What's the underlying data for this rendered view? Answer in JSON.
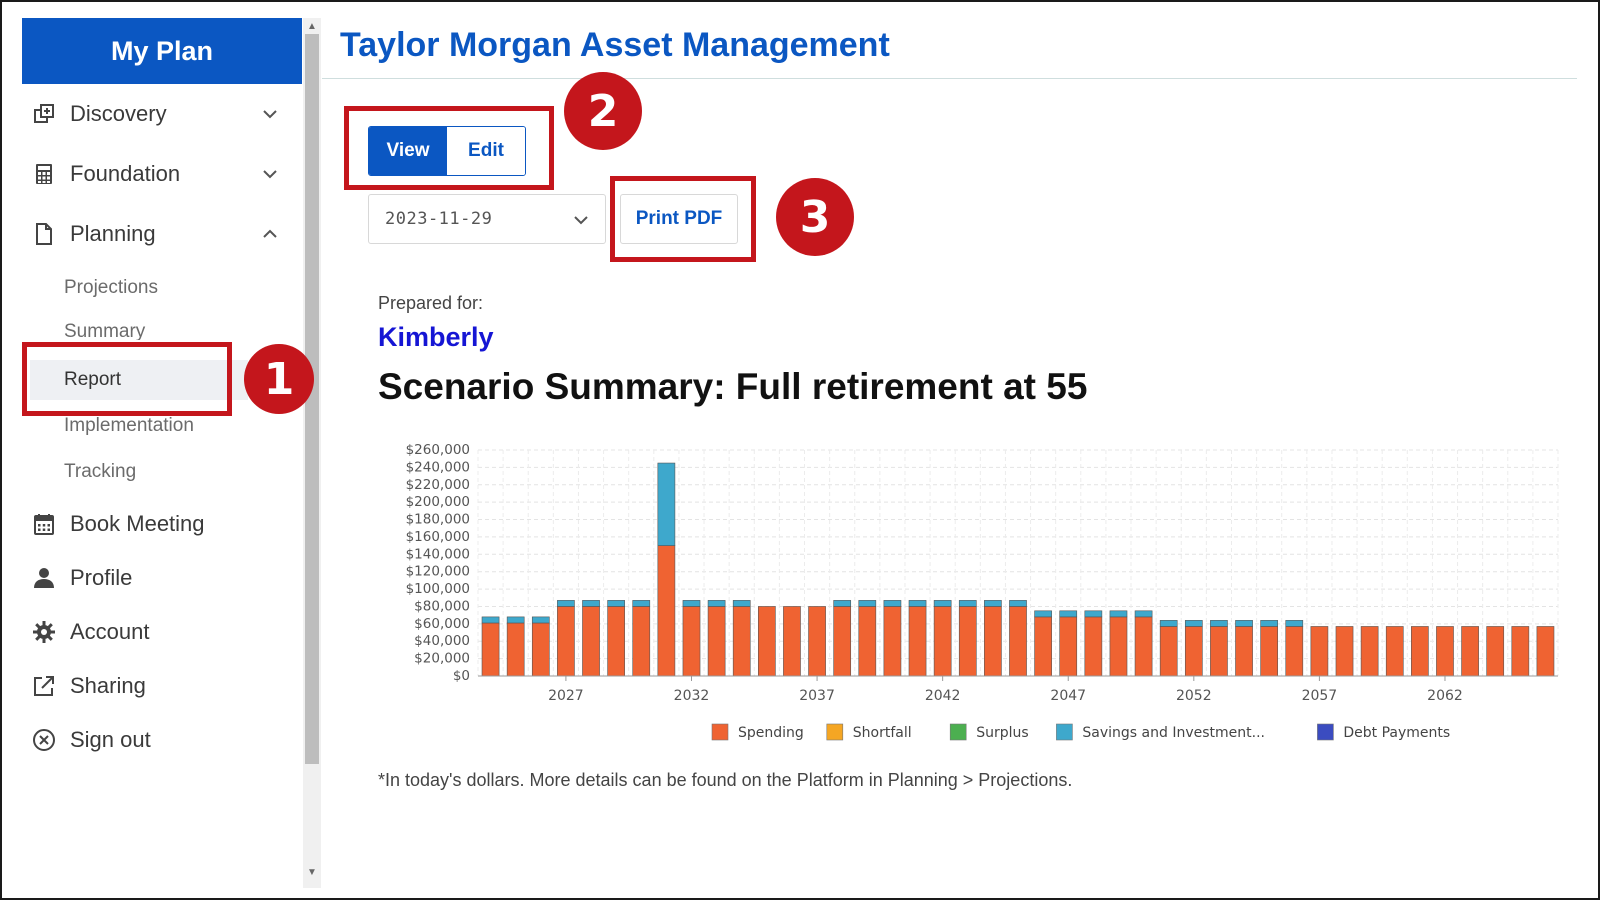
{
  "sidebar": {
    "brand": "My Plan",
    "items": [
      {
        "label": "Discovery",
        "icon": "discovery-icon",
        "chevron": "down"
      },
      {
        "label": "Foundation",
        "icon": "calculator-icon",
        "chevron": "down"
      },
      {
        "label": "Planning",
        "icon": "document-icon",
        "chevron": "up"
      }
    ],
    "sub_items": [
      {
        "label": "Projections"
      },
      {
        "label": "Summary"
      },
      {
        "label": "Report",
        "active": true
      },
      {
        "label": "Implementation"
      },
      {
        "label": "Tracking"
      }
    ],
    "bottom_items": [
      {
        "label": "Book Meeting",
        "icon": "calendar-icon"
      },
      {
        "label": "Profile",
        "icon": "user-icon"
      },
      {
        "label": "Account",
        "icon": "gear-icon"
      },
      {
        "label": "Sharing",
        "icon": "share-icon"
      },
      {
        "label": "Sign out",
        "icon": "sign-out-icon"
      }
    ]
  },
  "header": {
    "title": "Taylor Morgan Asset Management"
  },
  "controls": {
    "view_label": "View",
    "edit_label": "Edit",
    "selected_mode": "View",
    "date_value": "2023-11-29",
    "print_label": "Print PDF"
  },
  "report": {
    "prepared_label": "Prepared for:",
    "client_name": "Kimberly",
    "scenario_title": "Scenario Summary: Full retirement at 55",
    "footnote": "*In today's dollars. More details can be found on the Platform in Planning > Projections."
  },
  "annotations": [
    {
      "number": "1"
    },
    {
      "number": "2"
    },
    {
      "number": "3"
    }
  ],
  "colors": {
    "brand": "#0b57c2",
    "annotation": "#c4161c",
    "client_name": "#1515d4"
  },
  "chart_data": {
    "type": "bar",
    "stacked": true,
    "x": [
      2024,
      2025,
      2026,
      2027,
      2028,
      2029,
      2030,
      2031,
      2032,
      2033,
      2034,
      2035,
      2036,
      2037,
      2038,
      2039,
      2040,
      2041,
      2042,
      2043,
      2044,
      2045,
      2046,
      2047,
      2048,
      2049,
      2050,
      2051,
      2052,
      2053,
      2054,
      2055,
      2056,
      2057,
      2058,
      2059,
      2060,
      2061,
      2062,
      2063,
      2064,
      2065,
      2066
    ],
    "x_tick_labels": [
      "2027",
      "2032",
      "2037",
      "2042",
      "2047",
      "2052",
      "2057",
      "2062"
    ],
    "y_tick_labels": [
      "$0",
      "$20,000",
      "$40,000",
      "$60,000",
      "$80,000",
      "$100,000",
      "$120,000",
      "$140,000",
      "$160,000",
      "$180,000",
      "$200,000",
      "$220,000",
      "$240,000",
      "$260,000"
    ],
    "ylim": [
      0,
      260000
    ],
    "grid": true,
    "legend_position": "bottom",
    "series": [
      {
        "name": "Spending",
        "color": "#ef6332",
        "values": [
          61000,
          61000,
          61000,
          80000,
          80000,
          80000,
          80000,
          150000,
          80000,
          80000,
          80000,
          80000,
          80000,
          80000,
          80000,
          80000,
          80000,
          80000,
          80000,
          80000,
          80000,
          80000,
          68000,
          68000,
          68000,
          68000,
          68000,
          57000,
          57000,
          57000,
          57000,
          57000,
          57000,
          57000,
          57000,
          57000,
          57000,
          57000,
          57000,
          57000,
          57000,
          57000,
          57000
        ]
      },
      {
        "name": "Shortfall",
        "color": "#f5a623",
        "values": [
          0,
          0,
          0,
          0,
          0,
          0,
          0,
          0,
          0,
          0,
          0,
          0,
          0,
          0,
          0,
          0,
          0,
          0,
          0,
          0,
          0,
          0,
          0,
          0,
          0,
          0,
          0,
          0,
          0,
          0,
          0,
          0,
          0,
          0,
          0,
          0,
          0,
          0,
          0,
          0,
          0,
          0,
          0
        ]
      },
      {
        "name": "Surplus",
        "color": "#4caf50",
        "values": [
          0,
          0,
          0,
          0,
          0,
          0,
          0,
          0,
          0,
          0,
          0,
          0,
          0,
          0,
          0,
          0,
          0,
          0,
          0,
          0,
          0,
          0,
          0,
          0,
          0,
          0,
          0,
          0,
          0,
          0,
          0,
          0,
          0,
          0,
          0,
          0,
          0,
          0,
          0,
          0,
          0,
          0,
          0
        ]
      },
      {
        "name": "Savings and Investment...",
        "color": "#3ea8cc",
        "values": [
          7000,
          7000,
          7000,
          7000,
          7000,
          7000,
          7000,
          95000,
          7000,
          7000,
          7000,
          0,
          0,
          0,
          7000,
          7000,
          7000,
          7000,
          7000,
          7000,
          7000,
          7000,
          7000,
          7000,
          7000,
          7000,
          7000,
          7000,
          7000,
          7000,
          7000,
          7000,
          7000,
          0,
          0,
          0,
          0,
          0,
          0,
          0,
          0,
          0,
          0
        ]
      },
      {
        "name": "Debt Payments",
        "color": "#3b4cc0",
        "values": [
          0,
          0,
          0,
          0,
          0,
          0,
          0,
          0,
          0,
          0,
          0,
          0,
          0,
          0,
          0,
          0,
          0,
          0,
          0,
          0,
          0,
          0,
          0,
          0,
          0,
          0,
          0,
          0,
          0,
          0,
          0,
          0,
          0,
          0,
          0,
          0,
          0,
          0,
          0,
          0,
          0,
          0,
          0
        ]
      }
    ]
  }
}
